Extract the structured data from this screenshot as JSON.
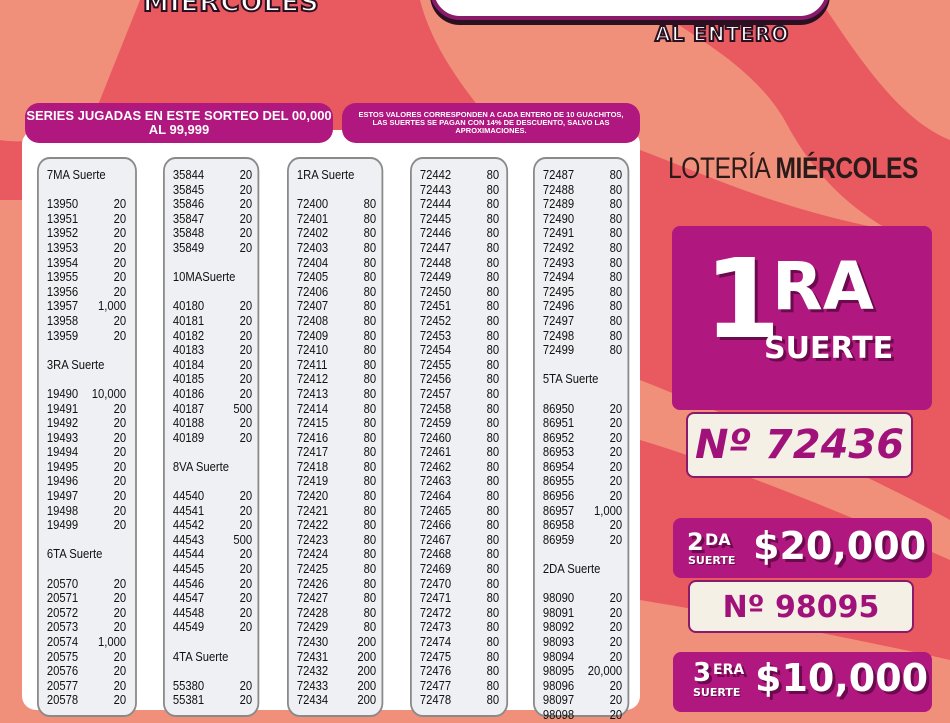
{
  "header": {
    "day": "MIÉRCOLES",
    "subtitle": "AL ENTERO"
  },
  "notes": {
    "series": "SERIES JUGADAS EN ESTE SORTEO DEL 00,000 AL 99,999",
    "disclaimer": "ESTOS VALORES CORRESPONDEN A CADA ENTERO DE 10 GUACHITOS, LAS SUERTES SE PAGAN CON 14% DE DESCUENTO, SALVO LAS APROXIMACIONES."
  },
  "colors": {
    "purple": "#b0177f",
    "salmon": "#f0907a",
    "red": "#e85a60",
    "cream": "#f5f0e6"
  },
  "columns": [
    [
      [
        "7MA Suerte"
      ],
      [
        ""
      ],
      [
        "13950",
        "20"
      ],
      [
        "13951",
        "20"
      ],
      [
        "13952",
        "20"
      ],
      [
        "13953",
        "20"
      ],
      [
        "13954",
        "20"
      ],
      [
        "13955",
        "20"
      ],
      [
        "13956",
        "20"
      ],
      [
        "13957",
        "1,000"
      ],
      [
        "13958",
        "20"
      ],
      [
        "13959",
        "20"
      ],
      [
        ""
      ],
      [
        "3RA Suerte"
      ],
      [
        ""
      ],
      [
        "19490",
        "10,000"
      ],
      [
        "19491",
        "20"
      ],
      [
        "19492",
        "20"
      ],
      [
        "19493",
        "20"
      ],
      [
        "19494",
        "20"
      ],
      [
        "19495",
        "20"
      ],
      [
        "19496",
        "20"
      ],
      [
        "19497",
        "20"
      ],
      [
        "19498",
        "20"
      ],
      [
        "19499",
        "20"
      ],
      [
        ""
      ],
      [
        "6TA Suerte"
      ],
      [
        ""
      ],
      [
        "20570",
        "20"
      ],
      [
        "20571",
        "20"
      ],
      [
        "20572",
        "20"
      ],
      [
        "20573",
        "20"
      ],
      [
        "20574",
        "1,000"
      ],
      [
        "20575",
        "20"
      ],
      [
        "20576",
        "20"
      ],
      [
        "20577",
        "20"
      ],
      [
        "20578",
        "20"
      ]
    ],
    [
      [
        "35844",
        "20"
      ],
      [
        "35845",
        "20"
      ],
      [
        "35846",
        "20"
      ],
      [
        "35847",
        "20"
      ],
      [
        "35848",
        "20"
      ],
      [
        "35849",
        "20"
      ],
      [
        ""
      ],
      [
        "10MASuerte"
      ],
      [
        ""
      ],
      [
        "40180",
        "20"
      ],
      [
        "40181",
        "20"
      ],
      [
        "40182",
        "20"
      ],
      [
        "40183",
        "20"
      ],
      [
        "40184",
        "20"
      ],
      [
        "40185",
        "20"
      ],
      [
        "40186",
        "20"
      ],
      [
        "40187",
        "500"
      ],
      [
        "40188",
        "20"
      ],
      [
        "40189",
        "20"
      ],
      [
        ""
      ],
      [
        "8VA Suerte"
      ],
      [
        ""
      ],
      [
        "44540",
        "20"
      ],
      [
        "44541",
        "20"
      ],
      [
        "44542",
        "20"
      ],
      [
        "44543",
        "500"
      ],
      [
        "44544",
        "20"
      ],
      [
        "44545",
        "20"
      ],
      [
        "44546",
        "20"
      ],
      [
        "44547",
        "20"
      ],
      [
        "44548",
        "20"
      ],
      [
        "44549",
        "20"
      ],
      [
        ""
      ],
      [
        "4TA Suerte"
      ],
      [
        ""
      ],
      [
        "55380",
        "20"
      ],
      [
        "55381",
        "20"
      ]
    ],
    [
      [
        "1RA Suerte"
      ],
      [
        ""
      ],
      [
        "72400",
        "80"
      ],
      [
        "72401",
        "80"
      ],
      [
        "72402",
        "80"
      ],
      [
        "72403",
        "80"
      ],
      [
        "72404",
        "80"
      ],
      [
        "72405",
        "80"
      ],
      [
        "72406",
        "80"
      ],
      [
        "72407",
        "80"
      ],
      [
        "72408",
        "80"
      ],
      [
        "72409",
        "80"
      ],
      [
        "72410",
        "80"
      ],
      [
        "72411",
        "80"
      ],
      [
        "72412",
        "80"
      ],
      [
        "72413",
        "80"
      ],
      [
        "72414",
        "80"
      ],
      [
        "72415",
        "80"
      ],
      [
        "72416",
        "80"
      ],
      [
        "72417",
        "80"
      ],
      [
        "72418",
        "80"
      ],
      [
        "72419",
        "80"
      ],
      [
        "72420",
        "80"
      ],
      [
        "72421",
        "80"
      ],
      [
        "72422",
        "80"
      ],
      [
        "72423",
        "80"
      ],
      [
        "72424",
        "80"
      ],
      [
        "72425",
        "80"
      ],
      [
        "72426",
        "80"
      ],
      [
        "72427",
        "80"
      ],
      [
        "72428",
        "80"
      ],
      [
        "72429",
        "80"
      ],
      [
        "72430",
        "200"
      ],
      [
        "72431",
        "200"
      ],
      [
        "72432",
        "200"
      ],
      [
        "72433",
        "200"
      ],
      [
        "72434",
        "200"
      ]
    ],
    [
      [
        "72442",
        "80"
      ],
      [
        "72443",
        "80"
      ],
      [
        "72444",
        "80"
      ],
      [
        "72445",
        "80"
      ],
      [
        "72446",
        "80"
      ],
      [
        "72447",
        "80"
      ],
      [
        "72448",
        "80"
      ],
      [
        "72449",
        "80"
      ],
      [
        "72450",
        "80"
      ],
      [
        "72451",
        "80"
      ],
      [
        "72452",
        "80"
      ],
      [
        "72453",
        "80"
      ],
      [
        "72454",
        "80"
      ],
      [
        "72455",
        "80"
      ],
      [
        "72456",
        "80"
      ],
      [
        "72457",
        "80"
      ],
      [
        "72458",
        "80"
      ],
      [
        "72459",
        "80"
      ],
      [
        "72460",
        "80"
      ],
      [
        "72461",
        "80"
      ],
      [
        "72462",
        "80"
      ],
      [
        "72463",
        "80"
      ],
      [
        "72464",
        "80"
      ],
      [
        "72465",
        "80"
      ],
      [
        "72466",
        "80"
      ],
      [
        "72467",
        "80"
      ],
      [
        "72468",
        "80"
      ],
      [
        "72469",
        "80"
      ],
      [
        "72470",
        "80"
      ],
      [
        "72471",
        "80"
      ],
      [
        "72472",
        "80"
      ],
      [
        "72473",
        "80"
      ],
      [
        "72474",
        "80"
      ],
      [
        "72475",
        "80"
      ],
      [
        "72476",
        "80"
      ],
      [
        "72477",
        "80"
      ],
      [
        "72478",
        "80"
      ]
    ],
    [
      [
        "72487",
        "80"
      ],
      [
        "72488",
        "80"
      ],
      [
        "72489",
        "80"
      ],
      [
        "72490",
        "80"
      ],
      [
        "72491",
        "80"
      ],
      [
        "72492",
        "80"
      ],
      [
        "72493",
        "80"
      ],
      [
        "72494",
        "80"
      ],
      [
        "72495",
        "80"
      ],
      [
        "72496",
        "80"
      ],
      [
        "72497",
        "80"
      ],
      [
        "72498",
        "80"
      ],
      [
        "72499",
        "80"
      ],
      [
        ""
      ],
      [
        "5TA Suerte"
      ],
      [
        ""
      ],
      [
        "86950",
        "20"
      ],
      [
        "86951",
        "20"
      ],
      [
        "86952",
        "20"
      ],
      [
        "86953",
        "20"
      ],
      [
        "86954",
        "20"
      ],
      [
        "86955",
        "20"
      ],
      [
        "86956",
        "20"
      ],
      [
        "86957",
        "1,000"
      ],
      [
        "86958",
        "20"
      ],
      [
        "86959",
        "20"
      ],
      [
        ""
      ],
      [
        "2DA Suerte"
      ],
      [
        ""
      ],
      [
        "98090",
        "20"
      ],
      [
        "98091",
        "20"
      ],
      [
        "98092",
        "20"
      ],
      [
        "98093",
        "20"
      ],
      [
        "98094",
        "20"
      ],
      [
        "98095",
        "20,000"
      ],
      [
        "98096",
        "20"
      ],
      [
        "98097",
        "20"
      ],
      [
        "98098",
        "20"
      ]
    ]
  ],
  "results": {
    "title_a": "LOTERÍA",
    "title_b": "MIÉRCOLES",
    "first": {
      "big": "1",
      "sup": "RA",
      "word": "SUERTE",
      "number": "Nº 72436"
    },
    "second": {
      "ord": "2",
      "sup": "DA",
      "word": "SUERTE",
      "prize": "$20,000",
      "number": "Nº 98095"
    },
    "third": {
      "ord": "3",
      "sup": "ERA",
      "word": "SUERTE",
      "prize": "$10,000"
    }
  }
}
